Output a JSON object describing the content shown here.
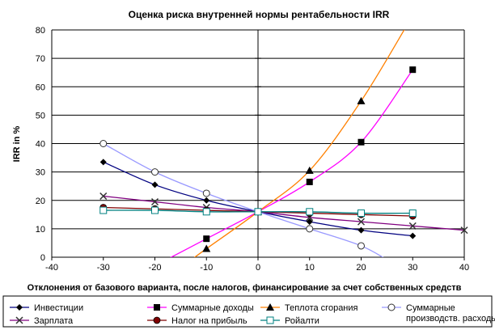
{
  "chart_data": {
    "type": "line",
    "title": "Оценка риска внутренней нормы рентабельности IRR",
    "xlabel": "Отклонения от базового варианта, после налогов, финансирование за счет собственных средств",
    "ylabel": "IRR in %",
    "xlim": [
      -40,
      40
    ],
    "ylim": [
      0,
      80
    ],
    "x_ticks": [
      "-40",
      "-30",
      "-20",
      "-10",
      "0",
      "10",
      "20",
      "30",
      "40"
    ],
    "y_ticks": [
      "0",
      "10",
      "20",
      "30",
      "40",
      "50",
      "60",
      "70",
      "80"
    ],
    "grid": "horizontal",
    "legend_position": "bottom",
    "series": [
      {
        "name": "Инвестиции",
        "color": "#000080",
        "marker": "diamond",
        "points": [
          [
            -30,
            33.5
          ],
          [
            -20,
            25.5
          ],
          [
            -10,
            20
          ],
          [
            0,
            16
          ],
          [
            10,
            12.5
          ],
          [
            20,
            9.5
          ],
          [
            30,
            7.5
          ]
        ]
      },
      {
        "name": "Суммарные доходы",
        "color": "#ff00ff",
        "marker": "square",
        "points": [
          [
            -10,
            6.5
          ],
          [
            0,
            16
          ],
          [
            10,
            26.5
          ],
          [
            20,
            40.5
          ],
          [
            30,
            66
          ]
        ]
      },
      {
        "name": "Теплота сгорания",
        "color": "#ff8000",
        "marker": "triangle",
        "points": [
          [
            -10,
            3
          ],
          [
            0,
            16
          ],
          [
            10,
            30.5
          ],
          [
            20,
            55
          ]
        ]
      },
      {
        "name": "Суммарные производств. расходы",
        "color": "#9999ff",
        "marker": "circle",
        "points": [
          [
            -30,
            40
          ],
          [
            -20,
            30
          ],
          [
            -10,
            22.5
          ],
          [
            0,
            16
          ],
          [
            10,
            10
          ],
          [
            20,
            4
          ]
        ]
      },
      {
        "name": "Зарплата",
        "color": "#800080",
        "marker": "x",
        "points": [
          [
            -30,
            21.5
          ],
          [
            -20,
            19.5
          ],
          [
            -10,
            17.5
          ],
          [
            0,
            16
          ],
          [
            10,
            14
          ],
          [
            20,
            12.5
          ],
          [
            30,
            11
          ],
          [
            40,
            9.5
          ]
        ]
      },
      {
        "name": "Налог на прибыль",
        "color": "#800000",
        "marker": "dot",
        "points": [
          [
            -30,
            17.5
          ],
          [
            -20,
            17
          ],
          [
            -10,
            16.5
          ],
          [
            0,
            16
          ],
          [
            10,
            15.5
          ],
          [
            20,
            15
          ],
          [
            30,
            14.5
          ]
        ]
      },
      {
        "name": "Ройалти",
        "color": "#008080",
        "marker": "opensquare",
        "points": [
          [
            -30,
            16.5
          ],
          [
            -20,
            16.5
          ],
          [
            -10,
            16
          ],
          [
            0,
            16
          ],
          [
            10,
            16
          ],
          [
            20,
            15.5
          ],
          [
            30,
            15.5
          ]
        ]
      }
    ]
  }
}
